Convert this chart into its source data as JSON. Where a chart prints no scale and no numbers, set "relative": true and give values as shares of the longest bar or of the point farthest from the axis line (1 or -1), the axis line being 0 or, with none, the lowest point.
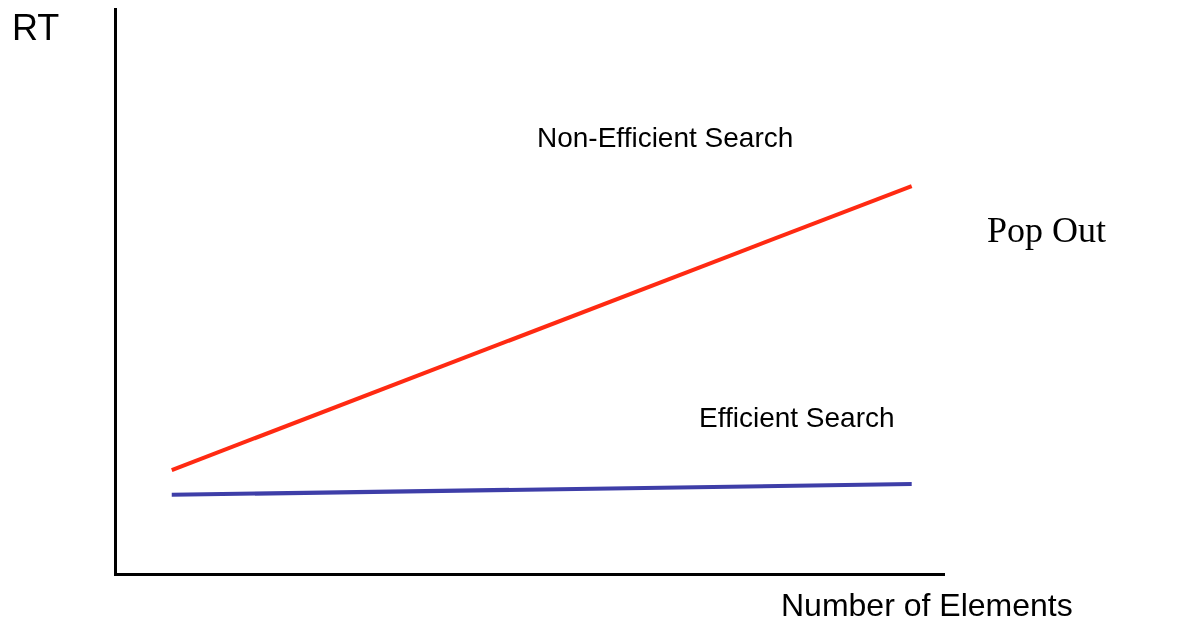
{
  "chart_data": {
    "type": "line",
    "relative": true,
    "xlabel": "Number of Elements",
    "ylabel": "RT",
    "categories": [
      null,
      null
    ],
    "series": [
      {
        "color": "#ff2a12",
        "values": [
          0.266,
          1.0
        ]
      },
      {
        "color": "#3e3ea8",
        "values": [
          0.202,
          0.23
        ]
      }
    ],
    "annotations": [
      "Non-Efficient Search",
      "Efficient Search",
      "Pop Out"
    ],
    "legend": false,
    "marker": "none",
    "line_style": "solid"
  }
}
